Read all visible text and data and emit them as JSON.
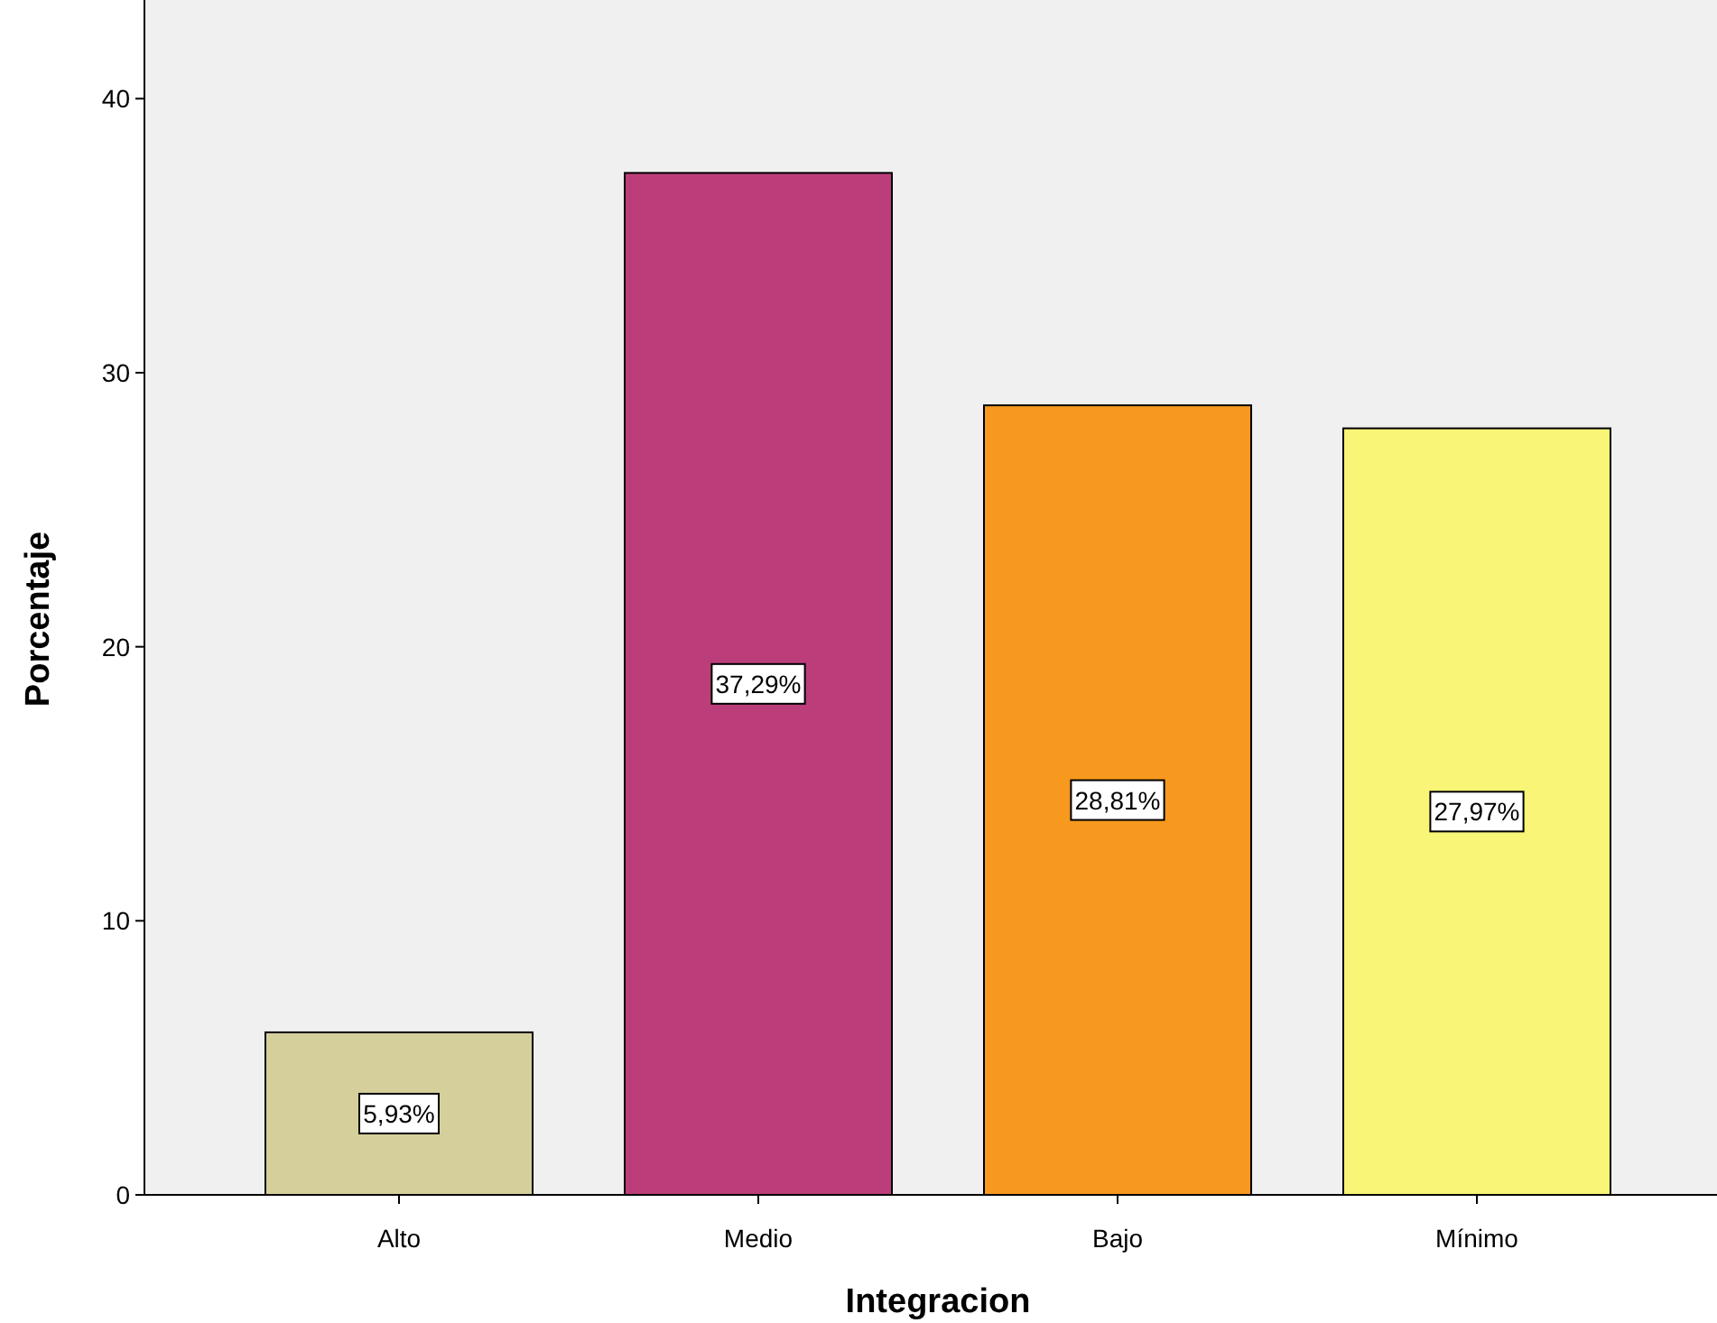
{
  "chart_data": {
    "type": "bar",
    "xlabel": "Integracion",
    "ylabel": "Porcentaje",
    "categories": [
      "Alto",
      "Medio",
      "Bajo",
      "Mínimo"
    ],
    "values": [
      5.93,
      37.29,
      28.81,
      27.97
    ],
    "colors": [
      "#d5cf9b",
      "#bb3e7a",
      "#f7991f",
      "#f8f577"
    ],
    "value_labels": [
      "5,93%",
      "37,29%",
      "28,81%",
      "27,97%"
    ],
    "ylim": [
      0,
      43.6
    ],
    "yticks": [
      0,
      10,
      20,
      30,
      40
    ],
    "grid": false
  }
}
